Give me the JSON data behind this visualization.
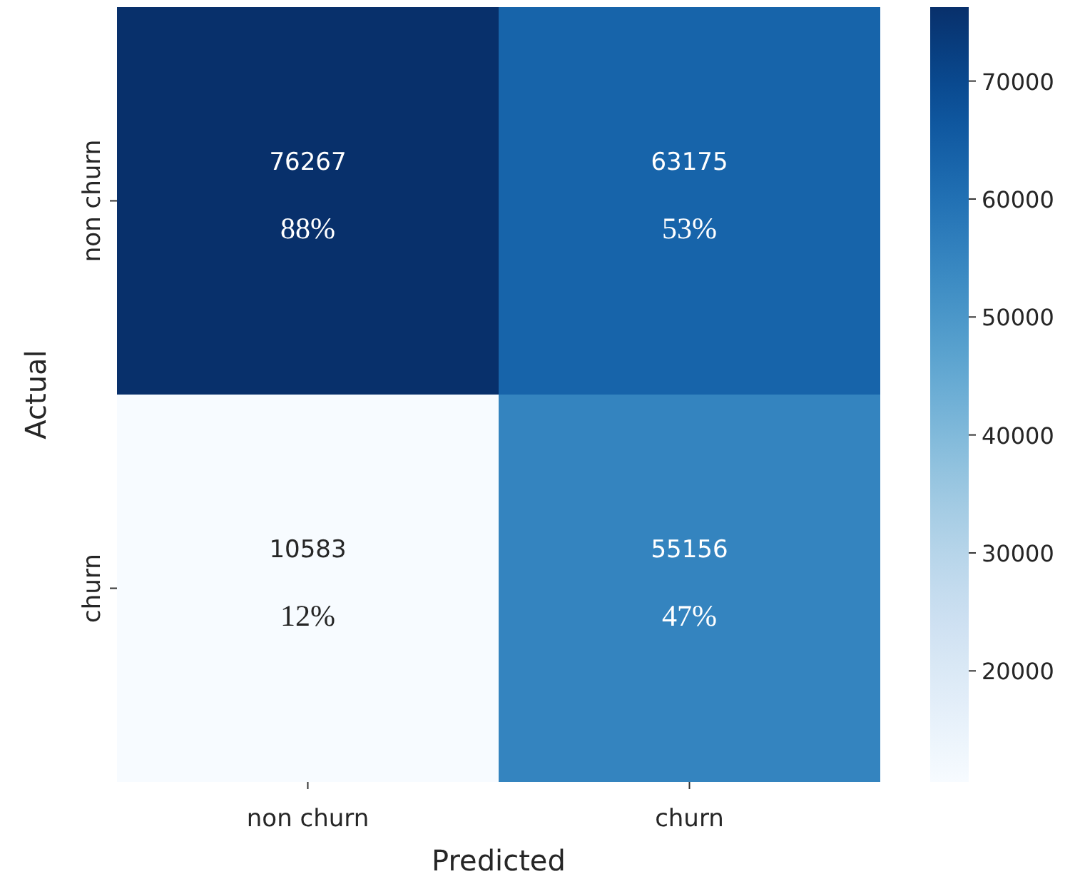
{
  "chart_data": {
    "type": "heatmap",
    "xlabel": "Predicted",
    "ylabel": "Actual",
    "categories": [
      "non churn",
      "churn"
    ],
    "y_categories": [
      "non churn",
      "churn"
    ],
    "cells": [
      [
        76267,
        63175
      ],
      [
        10583,
        55156
      ]
    ],
    "cell_labels": [
      [
        "76267\n88%",
        "63175\n53%"
      ],
      [
        "10583\n12%",
        "55156\n47%"
      ]
    ],
    "clim": [
      10583,
      76267
    ],
    "cticks": [
      20000,
      30000,
      40000,
      50000,
      60000,
      70000
    ]
  }
}
